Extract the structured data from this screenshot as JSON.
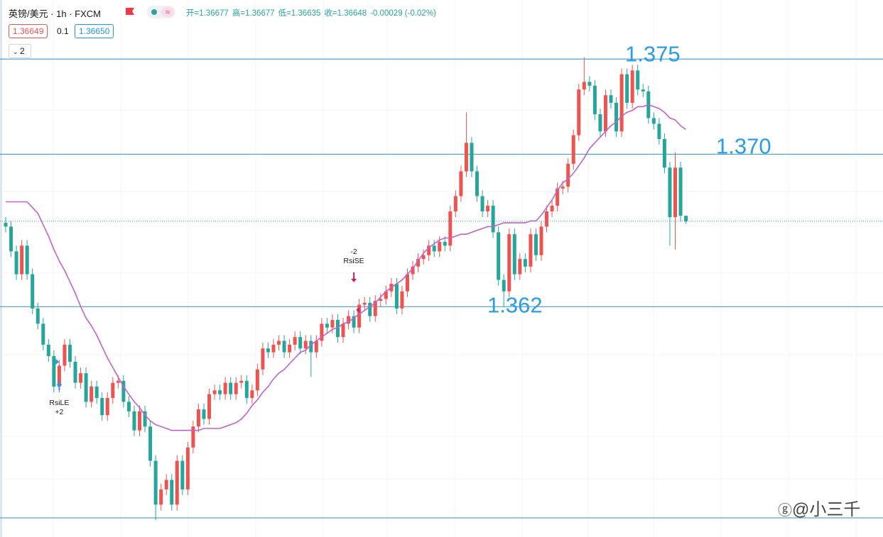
{
  "header": {
    "symbol": "英镑/美元 · 1h · FXCM",
    "ohlc": [
      "开=1.36677",
      "高=1.36677",
      "低=1.36635",
      "收=1.36648"
    ],
    "change": "-0.00029 (-0.02%)",
    "bid": "1.36649",
    "spread": "0.1",
    "ask": "1.36650",
    "indicators": "2"
  },
  "chart_data": {
    "type": "candlestick",
    "ylim": [
      1.3499,
      1.3781
    ],
    "up_color": "#ef5350",
    "down_color": "#26a69a",
    "open": [
      1.3664,
      1.3662,
      1.3649,
      1.3637,
      1.3652,
      1.3637,
      1.3619,
      1.3611,
      1.36,
      1.3594,
      1.3578,
      1.3589,
      1.36,
      1.3591,
      1.358,
      1.3585,
      1.357,
      1.3578,
      1.3572,
      1.3563,
      1.3572,
      1.358,
      1.3581,
      1.357,
      1.3565,
      1.3555,
      1.3565,
      1.3557,
      1.3539,
      1.3516,
      1.3524,
      1.3529,
      1.3516,
      1.3539,
      1.3524,
      1.3546,
      1.3557,
      1.3566,
      1.3561,
      1.3574,
      1.3576,
      1.3574,
      1.358,
      1.3574,
      1.358,
      1.3581,
      1.3572,
      1.3576,
      1.3587,
      1.3598,
      1.3596,
      1.36,
      1.3602,
      1.3596,
      1.36,
      1.3604,
      1.3598,
      1.3602,
      1.3596,
      1.3602,
      1.3611,
      1.3609,
      1.3613,
      1.3604,
      1.3611,
      1.3615,
      1.3609,
      1.3621,
      1.3622,
      1.3615,
      1.3623,
      1.3624,
      1.3628,
      1.3632,
      1.3619,
      1.3628,
      1.3637,
      1.3641,
      1.3645,
      1.3647,
      1.3652,
      1.3649,
      1.3654,
      1.3652,
      1.367,
      1.3678,
      1.3691,
      1.3706,
      1.3691,
      1.3678,
      1.367,
      1.3673,
      1.3659,
      1.3634,
      1.3628,
      1.3658,
      1.3637,
      1.3645,
      1.3641,
      1.3658,
      1.3647,
      1.3662,
      1.367,
      1.3673,
      1.3682,
      1.3683,
      1.3695,
      1.371,
      1.3734,
      1.3738,
      1.3736,
      1.3721,
      1.3712,
      1.3731,
      1.3727,
      1.3712,
      1.3742,
      1.3727,
      1.3744,
      1.3734,
      1.3733,
      1.3719,
      1.3716,
      1.3708,
      1.3693,
      1.3667,
      1.3693,
      1.36677
    ],
    "high": [
      1.3667,
      1.3665,
      1.3652,
      1.3655,
      1.3655,
      1.364,
      1.3622,
      1.3614,
      1.3603,
      1.3597,
      1.3592,
      1.3603,
      1.3603,
      1.3594,
      1.3588,
      1.3588,
      1.3581,
      1.3581,
      1.3575,
      1.3575,
      1.3583,
      1.3584,
      1.3584,
      1.3573,
      1.3568,
      1.3568,
      1.3568,
      1.356,
      1.3542,
      1.3527,
      1.3532,
      1.3532,
      1.3542,
      1.3542,
      1.3549,
      1.356,
      1.3569,
      1.3569,
      1.3577,
      1.3579,
      1.3579,
      1.3583,
      1.3583,
      1.3583,
      1.3584,
      1.3584,
      1.3579,
      1.359,
      1.3601,
      1.3601,
      1.3603,
      1.3605,
      1.3605,
      1.3603,
      1.3607,
      1.3607,
      1.3605,
      1.3605,
      1.3605,
      1.3614,
      1.3614,
      1.3616,
      1.3616,
      1.3614,
      1.3618,
      1.3618,
      1.3624,
      1.3625,
      1.3625,
      1.3626,
      1.3627,
      1.3631,
      1.3635,
      1.3635,
      1.3631,
      1.364,
      1.3644,
      1.3648,
      1.365,
      1.3655,
      1.3655,
      1.3657,
      1.3657,
      1.3673,
      1.3681,
      1.3694,
      1.3722,
      1.3709,
      1.3694,
      1.3681,
      1.3676,
      1.3676,
      1.3662,
      1.3637,
      1.3661,
      1.3661,
      1.3648,
      1.3648,
      1.3661,
      1.3661,
      1.3665,
      1.3673,
      1.3676,
      1.3685,
      1.3686,
      1.3698,
      1.3713,
      1.3737,
      1.3751,
      1.3741,
      1.3739,
      1.3724,
      1.3734,
      1.3734,
      1.373,
      1.3745,
      1.3745,
      1.3747,
      1.3747,
      1.3737,
      1.3736,
      1.3722,
      1.3719,
      1.3711,
      1.3696,
      1.3701,
      1.3696,
      1.36677
    ],
    "low": [
      1.3659,
      1.3646,
      1.3634,
      1.3634,
      1.3634,
      1.3616,
      1.3608,
      1.3597,
      1.3591,
      1.3575,
      1.3575,
      1.3586,
      1.3588,
      1.3577,
      1.3577,
      1.3567,
      1.3567,
      1.3569,
      1.356,
      1.356,
      1.3569,
      1.3577,
      1.3567,
      1.3562,
      1.3552,
      1.3552,
      1.3554,
      1.3536,
      1.3508,
      1.3513,
      1.3521,
      1.3513,
      1.3513,
      1.3521,
      1.3521,
      1.3543,
      1.3554,
      1.3558,
      1.3558,
      1.3571,
      1.3571,
      1.3571,
      1.3571,
      1.3571,
      1.3577,
      1.3569,
      1.3569,
      1.3573,
      1.3584,
      1.3593,
      1.3593,
      1.3597,
      1.3593,
      1.3593,
      1.3597,
      1.3595,
      1.3595,
      1.3583,
      1.3593,
      1.3599,
      1.3606,
      1.3606,
      1.3601,
      1.3601,
      1.3608,
      1.3606,
      1.3606,
      1.3618,
      1.3612,
      1.3612,
      1.362,
      1.3621,
      1.3625,
      1.3616,
      1.3616,
      1.3625,
      1.3634,
      1.3638,
      1.3642,
      1.3644,
      1.3646,
      1.3646,
      1.3649,
      1.3649,
      1.3667,
      1.3675,
      1.3688,
      1.3688,
      1.3675,
      1.3667,
      1.3667,
      1.3656,
      1.3631,
      1.362,
      1.3625,
      1.3634,
      1.3634,
      1.3638,
      1.3638,
      1.3644,
      1.3644,
      1.3659,
      1.3667,
      1.367,
      1.3679,
      1.368,
      1.3692,
      1.3707,
      1.3731,
      1.3733,
      1.3718,
      1.3709,
      1.3709,
      1.3724,
      1.3709,
      1.3709,
      1.3724,
      1.3724,
      1.3731,
      1.373,
      1.3716,
      1.3713,
      1.3705,
      1.369,
      1.3652,
      1.365,
      1.36647,
      1.36635
    ],
    "close": [
      1.3662,
      1.3649,
      1.3637,
      1.3652,
      1.3637,
      1.3619,
      1.3611,
      1.36,
      1.3594,
      1.3578,
      1.3589,
      1.36,
      1.3591,
      1.358,
      1.3585,
      1.357,
      1.3578,
      1.3572,
      1.3563,
      1.3572,
      1.358,
      1.3581,
      1.357,
      1.3565,
      1.3555,
      1.3565,
      1.3557,
      1.3539,
      1.3516,
      1.3524,
      1.3529,
      1.3516,
      1.3539,
      1.3524,
      1.3546,
      1.3557,
      1.3566,
      1.3561,
      1.3574,
      1.3576,
      1.3574,
      1.358,
      1.3574,
      1.358,
      1.3581,
      1.3572,
      1.3576,
      1.3587,
      1.3598,
      1.3596,
      1.36,
      1.3602,
      1.3596,
      1.36,
      1.3604,
      1.3598,
      1.3602,
      1.3596,
      1.3602,
      1.3611,
      1.3609,
      1.3613,
      1.3604,
      1.3611,
      1.3615,
      1.3609,
      1.3621,
      1.3622,
      1.3615,
      1.3623,
      1.3624,
      1.3628,
      1.3632,
      1.3619,
      1.3628,
      1.3637,
      1.3641,
      1.3645,
      1.3647,
      1.3652,
      1.3649,
      1.3654,
      1.3652,
      1.367,
      1.3678,
      1.3691,
      1.3706,
      1.3691,
      1.3678,
      1.367,
      1.3673,
      1.3659,
      1.3634,
      1.3628,
      1.3658,
      1.3637,
      1.3645,
      1.3641,
      1.3658,
      1.3647,
      1.3662,
      1.367,
      1.3673,
      1.3682,
      1.3683,
      1.3695,
      1.371,
      1.3734,
      1.3738,
      1.3736,
      1.3721,
      1.3712,
      1.3731,
      1.3727,
      1.3712,
      1.3742,
      1.3727,
      1.3744,
      1.3734,
      1.3733,
      1.3719,
      1.3716,
      1.3708,
      1.3693,
      1.3667,
      1.3693,
      1.36677,
      1.36648
    ],
    "ma": {
      "color": "#c062cc",
      "values": [
        1.3675,
        1.3675,
        1.3675,
        1.3675,
        1.3675,
        1.3672,
        1.3669,
        1.3663,
        1.3657,
        1.365,
        1.3644,
        1.3639,
        1.3633,
        1.3627,
        1.362,
        1.3614,
        1.361,
        1.3605,
        1.3599,
        1.3593,
        1.3588,
        1.3583,
        1.3578,
        1.3574,
        1.357,
        1.3567,
        1.3563,
        1.356,
        1.3558,
        1.3557,
        1.3556,
        1.3555,
        1.3555,
        1.3555,
        1.3555,
        1.3555,
        1.3555,
        1.3556,
        1.3556,
        1.3556,
        1.3556,
        1.3557,
        1.3558,
        1.3559,
        1.3561,
        1.3564,
        1.3568,
        1.3571,
        1.3575,
        1.3578,
        1.3582,
        1.3585,
        1.3587,
        1.359,
        1.3593,
        1.3596,
        1.3597,
        1.36,
        1.3602,
        1.3604,
        1.3606,
        1.3608,
        1.3609,
        1.3611,
        1.3612,
        1.3614,
        1.3616,
        1.3618,
        1.362,
        1.3622,
        1.3625,
        1.3628,
        1.363,
        1.3632,
        1.3634,
        1.3637,
        1.364,
        1.3644,
        1.3648,
        1.3651,
        1.3653,
        1.3655,
        1.3656,
        1.3656,
        1.3657,
        1.3658,
        1.3658,
        1.3659,
        1.366,
        1.3661,
        1.3662,
        1.3662,
        1.3663,
        1.3664,
        1.3664,
        1.3664,
        1.3664,
        1.3664,
        1.3665,
        1.3665,
        1.3668,
        1.3672,
        1.3676,
        1.3681,
        1.3685,
        1.3687,
        1.369,
        1.3694,
        1.3698,
        1.3703,
        1.3706,
        1.3709,
        1.3712,
        1.3715,
        1.3717,
        1.372,
        1.3722,
        1.3723,
        1.3725,
        1.3725,
        1.3726,
        1.3725,
        1.3724,
        1.3722,
        1.3719,
        1.3718,
        1.3715,
        1.3713
      ]
    },
    "levels": [
      {
        "value": 1.375,
        "label": "1.375"
      },
      {
        "value": 1.37,
        "label": "1.370"
      },
      {
        "value": 1.362,
        "label": "1.362"
      }
    ],
    "level_color": "#2f8fcf",
    "signals": [
      {
        "label": "RsiLE",
        "qty": "+2"
      },
      {
        "label": "RsiSE",
        "qty": "-2"
      }
    ],
    "watermark": "@小三千"
  }
}
